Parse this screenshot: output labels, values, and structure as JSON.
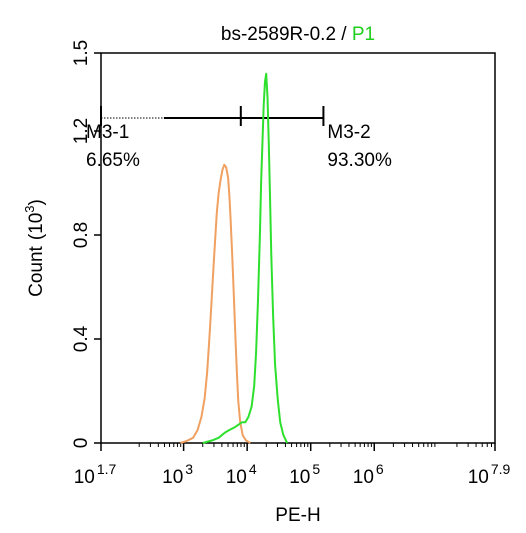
{
  "chart_data": {
    "type": "histogram",
    "title": {
      "prefix": "bs-2589R-0.2 / ",
      "gate": "P1",
      "gate_color": "#1ecf1e"
    },
    "xlabel": "PE-H",
    "ylabel": "Count",
    "ylabel_unit_base": "(10",
    "ylabel_unit_exp": "3",
    "ylabel_unit_close": ")",
    "x_scale": "log",
    "xlim_log10": [
      1.7,
      7.9
    ],
    "ylim": [
      0,
      1.5
    ],
    "x_ticks": [
      {
        "log": 1.7,
        "base": "10",
        "exp": "1.7"
      },
      {
        "log": 3,
        "base": "10",
        "exp": "3"
      },
      {
        "log": 4,
        "base": "10",
        "exp": "4"
      },
      {
        "log": 5,
        "base": "10",
        "exp": "5"
      },
      {
        "log": 6,
        "base": "10",
        "exp": "6"
      },
      {
        "log": 7.9,
        "base": "10",
        "exp": "7.9"
      }
    ],
    "y_ticks": [
      {
        "value": 0,
        "label": "0"
      },
      {
        "value": 0.4,
        "label": "0.4"
      },
      {
        "value": 0.8,
        "label": "0.8"
      },
      {
        "value": 1.2,
        "label": "1.2"
      },
      {
        "value": 1.5,
        "label": "1.5"
      }
    ],
    "series": [
      {
        "color": "#f0a060",
        "points": [
          [
            2.95,
            0.0
          ],
          [
            3.05,
            0.008
          ],
          [
            3.15,
            0.02
          ],
          [
            3.22,
            0.05
          ],
          [
            3.28,
            0.1
          ],
          [
            3.33,
            0.17
          ],
          [
            3.37,
            0.27
          ],
          [
            3.4,
            0.38
          ],
          [
            3.43,
            0.5
          ],
          [
            3.46,
            0.63
          ],
          [
            3.49,
            0.76
          ],
          [
            3.52,
            0.88
          ],
          [
            3.55,
            0.96
          ],
          [
            3.58,
            1.01
          ],
          [
            3.61,
            1.05
          ],
          [
            3.64,
            1.07
          ],
          [
            3.67,
            1.06
          ],
          [
            3.7,
            1.02
          ],
          [
            3.72,
            0.95
          ],
          [
            3.74,
            0.86
          ],
          [
            3.76,
            0.75
          ],
          [
            3.78,
            0.63
          ],
          [
            3.8,
            0.5
          ],
          [
            3.82,
            0.38
          ],
          [
            3.84,
            0.26
          ],
          [
            3.86,
            0.16
          ],
          [
            3.89,
            0.08
          ],
          [
            3.93,
            0.03
          ],
          [
            3.98,
            0.01
          ],
          [
            4.05,
            0.0
          ]
        ]
      },
      {
        "color": "#2ee02e",
        "points": [
          [
            3.3,
            0.0
          ],
          [
            3.45,
            0.01
          ],
          [
            3.55,
            0.02
          ],
          [
            3.65,
            0.04
          ],
          [
            3.72,
            0.05
          ],
          [
            3.8,
            0.06
          ],
          [
            3.86,
            0.07
          ],
          [
            3.92,
            0.08
          ],
          [
            3.97,
            0.08
          ],
          [
            4.02,
            0.1
          ],
          [
            4.07,
            0.14
          ],
          [
            4.11,
            0.22
          ],
          [
            4.14,
            0.35
          ],
          [
            4.17,
            0.55
          ],
          [
            4.2,
            0.8
          ],
          [
            4.22,
            1.0
          ],
          [
            4.24,
            1.15
          ],
          [
            4.26,
            1.3
          ],
          [
            4.28,
            1.39
          ],
          [
            4.3,
            1.42
          ],
          [
            4.32,
            1.33
          ],
          [
            4.34,
            1.15
          ],
          [
            4.36,
            0.95
          ],
          [
            4.38,
            0.72
          ],
          [
            4.41,
            0.48
          ],
          [
            4.44,
            0.3
          ],
          [
            4.48,
            0.17
          ],
          [
            4.52,
            0.08
          ],
          [
            4.57,
            0.03
          ],
          [
            4.63,
            0.0
          ]
        ]
      }
    ],
    "markers": [
      {
        "label": "M3-1",
        "value": "6.65%",
        "from_log": 1.7,
        "to_log": 3.9
      },
      {
        "label": "M3-2",
        "value": "93.30%",
        "from_log": 3.9,
        "to_log": 5.2
      }
    ],
    "marker_y": 1.25
  }
}
